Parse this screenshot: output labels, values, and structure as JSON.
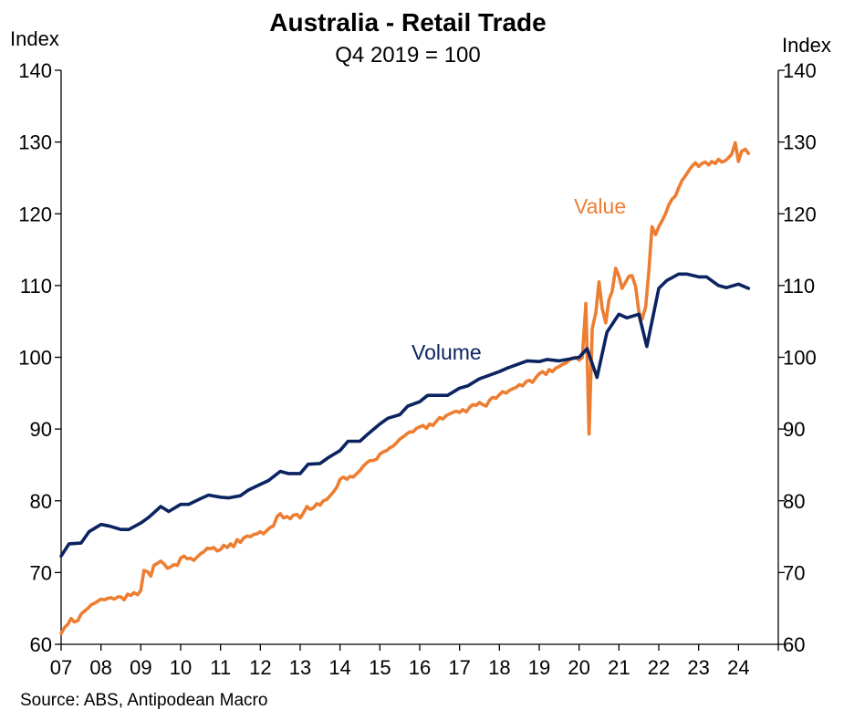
{
  "chart_data": {
    "type": "line",
    "title": "Australia - Retail Trade",
    "subtitle": "Q4 2019 = 100",
    "left_axis_label": "Index",
    "right_axis_label": "Index",
    "ylim": [
      60,
      140
    ],
    "y_ticks": [
      60,
      70,
      80,
      90,
      100,
      110,
      120,
      130,
      140
    ],
    "y_tick_labels": [
      "60",
      "70",
      "80",
      "90",
      "100",
      "110",
      "120",
      "130",
      "140"
    ],
    "xlim": [
      2007,
      2025
    ],
    "x_ticks": [
      2007,
      2008,
      2009,
      2010,
      2011,
      2012,
      2013,
      2014,
      2015,
      2016,
      2017,
      2018,
      2019,
      2020,
      2021,
      2022,
      2023,
      2024
    ],
    "x_tick_labels": [
      "07",
      "08",
      "09",
      "10",
      "11",
      "12",
      "13",
      "14",
      "15",
      "16",
      "17",
      "18",
      "19",
      "20",
      "21",
      "22",
      "23",
      "24"
    ],
    "grid": false,
    "source": "Source: ABS, Antipodean Macro",
    "series": [
      {
        "name": "Volume",
        "color": "#0b2461",
        "frequency": "quarterly",
        "points": [
          [
            2007.0,
            72.3
          ],
          [
            2007.2,
            74.0
          ],
          [
            2007.5,
            74.1
          ],
          [
            2007.7,
            75.7
          ],
          [
            2008.0,
            76.7
          ],
          [
            2008.2,
            76.5
          ],
          [
            2008.5,
            76.0
          ],
          [
            2008.7,
            76.0
          ],
          [
            2009.0,
            76.9
          ],
          [
            2009.2,
            77.7
          ],
          [
            2009.5,
            79.2
          ],
          [
            2009.7,
            78.5
          ],
          [
            2010.0,
            79.5
          ],
          [
            2010.2,
            79.5
          ],
          [
            2010.5,
            80.3
          ],
          [
            2010.7,
            80.8
          ],
          [
            2011.0,
            80.5
          ],
          [
            2011.2,
            80.4
          ],
          [
            2011.5,
            80.7
          ],
          [
            2011.7,
            81.5
          ],
          [
            2012.0,
            82.3
          ],
          [
            2012.2,
            82.8
          ],
          [
            2012.5,
            84.1
          ],
          [
            2012.7,
            83.8
          ],
          [
            2013.0,
            83.8
          ],
          [
            2013.2,
            85.1
          ],
          [
            2013.5,
            85.2
          ],
          [
            2013.7,
            86.0
          ],
          [
            2014.0,
            87.0
          ],
          [
            2014.2,
            88.3
          ],
          [
            2014.5,
            88.3
          ],
          [
            2014.7,
            89.3
          ],
          [
            2015.0,
            90.7
          ],
          [
            2015.2,
            91.5
          ],
          [
            2015.5,
            92.0
          ],
          [
            2015.7,
            93.2
          ],
          [
            2016.0,
            93.8
          ],
          [
            2016.2,
            94.7
          ],
          [
            2016.5,
            94.7
          ],
          [
            2016.7,
            94.7
          ],
          [
            2017.0,
            95.7
          ],
          [
            2017.2,
            96.0
          ],
          [
            2017.5,
            97.0
          ],
          [
            2017.7,
            97.4
          ],
          [
            2018.0,
            98.0
          ],
          [
            2018.2,
            98.5
          ],
          [
            2018.5,
            99.1
          ],
          [
            2018.7,
            99.5
          ],
          [
            2019.0,
            99.4
          ],
          [
            2019.2,
            99.7
          ],
          [
            2019.5,
            99.5
          ],
          [
            2019.7,
            99.7
          ],
          [
            2020.0,
            100.0
          ],
          [
            2020.2,
            101.2
          ],
          [
            2020.45,
            97.2
          ],
          [
            2020.7,
            103.5
          ],
          [
            2021.0,
            106.0
          ],
          [
            2021.2,
            105.5
          ],
          [
            2021.5,
            106.0
          ],
          [
            2021.7,
            101.5
          ],
          [
            2022.0,
            109.6
          ],
          [
            2022.2,
            110.7
          ],
          [
            2022.5,
            111.6
          ],
          [
            2022.7,
            111.6
          ],
          [
            2023.0,
            111.2
          ],
          [
            2023.2,
            111.2
          ],
          [
            2023.5,
            110.0
          ],
          [
            2023.7,
            109.7
          ],
          [
            2024.0,
            110.2
          ],
          [
            2024.25,
            109.6
          ]
        ]
      },
      {
        "name": "Value",
        "color": "#ed7d31",
        "frequency": "monthly",
        "points": [
          [
            2007.0,
            61.5
          ],
          [
            2007.08,
            62.3
          ],
          [
            2007.17,
            62.8
          ],
          [
            2007.25,
            63.6
          ],
          [
            2007.33,
            63.1
          ],
          [
            2007.42,
            63.3
          ],
          [
            2007.5,
            64.2
          ],
          [
            2007.58,
            64.6
          ],
          [
            2007.67,
            65.0
          ],
          [
            2007.75,
            65.5
          ],
          [
            2007.83,
            65.7
          ],
          [
            2007.92,
            66.0
          ],
          [
            2008.0,
            66.3
          ],
          [
            2008.08,
            66.2
          ],
          [
            2008.17,
            66.4
          ],
          [
            2008.25,
            66.5
          ],
          [
            2008.33,
            66.3
          ],
          [
            2008.42,
            66.6
          ],
          [
            2008.5,
            66.6
          ],
          [
            2008.58,
            66.2
          ],
          [
            2008.67,
            67.0
          ],
          [
            2008.75,
            66.8
          ],
          [
            2008.83,
            67.2
          ],
          [
            2008.92,
            66.9
          ],
          [
            2009.0,
            67.5
          ],
          [
            2009.08,
            70.3
          ],
          [
            2009.17,
            70.1
          ],
          [
            2009.25,
            69.5
          ],
          [
            2009.33,
            71.0
          ],
          [
            2009.42,
            71.3
          ],
          [
            2009.5,
            71.6
          ],
          [
            2009.58,
            71.2
          ],
          [
            2009.67,
            70.6
          ],
          [
            2009.75,
            70.8
          ],
          [
            2009.83,
            71.1
          ],
          [
            2009.92,
            71.0
          ],
          [
            2010.0,
            72.0
          ],
          [
            2010.08,
            72.3
          ],
          [
            2010.17,
            71.9
          ],
          [
            2010.25,
            72.0
          ],
          [
            2010.33,
            71.7
          ],
          [
            2010.42,
            72.2
          ],
          [
            2010.5,
            72.6
          ],
          [
            2010.58,
            72.9
          ],
          [
            2010.67,
            73.4
          ],
          [
            2010.75,
            73.3
          ],
          [
            2010.83,
            73.5
          ],
          [
            2010.92,
            73.0
          ],
          [
            2011.0,
            73.2
          ],
          [
            2011.08,
            73.8
          ],
          [
            2011.17,
            73.5
          ],
          [
            2011.25,
            74.0
          ],
          [
            2011.33,
            73.6
          ],
          [
            2011.42,
            74.6
          ],
          [
            2011.5,
            74.2
          ],
          [
            2011.58,
            74.8
          ],
          [
            2011.67,
            75.1
          ],
          [
            2011.75,
            75.0
          ],
          [
            2011.83,
            75.3
          ],
          [
            2011.92,
            75.4
          ],
          [
            2012.0,
            75.7
          ],
          [
            2012.08,
            75.4
          ],
          [
            2012.17,
            75.9
          ],
          [
            2012.25,
            76.3
          ],
          [
            2012.33,
            76.5
          ],
          [
            2012.42,
            77.8
          ],
          [
            2012.5,
            78.2
          ],
          [
            2012.58,
            77.6
          ],
          [
            2012.67,
            77.8
          ],
          [
            2012.75,
            77.5
          ],
          [
            2012.83,
            78.0
          ],
          [
            2012.92,
            78.1
          ],
          [
            2013.0,
            77.6
          ],
          [
            2013.08,
            78.3
          ],
          [
            2013.17,
            79.2
          ],
          [
            2013.25,
            78.8
          ],
          [
            2013.33,
            79.0
          ],
          [
            2013.42,
            79.6
          ],
          [
            2013.5,
            79.4
          ],
          [
            2013.58,
            80.0
          ],
          [
            2013.67,
            80.2
          ],
          [
            2013.75,
            80.7
          ],
          [
            2013.83,
            81.2
          ],
          [
            2013.92,
            81.9
          ],
          [
            2014.0,
            83.0
          ],
          [
            2014.08,
            83.3
          ],
          [
            2014.17,
            83.0
          ],
          [
            2014.25,
            83.4
          ],
          [
            2014.33,
            83.3
          ],
          [
            2014.42,
            83.8
          ],
          [
            2014.5,
            84.2
          ],
          [
            2014.58,
            84.8
          ],
          [
            2014.67,
            85.3
          ],
          [
            2014.75,
            85.6
          ],
          [
            2014.83,
            85.6
          ],
          [
            2014.92,
            85.8
          ],
          [
            2015.0,
            86.5
          ],
          [
            2015.08,
            86.8
          ],
          [
            2015.17,
            87.0
          ],
          [
            2015.25,
            87.4
          ],
          [
            2015.33,
            87.6
          ],
          [
            2015.42,
            88.1
          ],
          [
            2015.5,
            88.6
          ],
          [
            2015.58,
            88.9
          ],
          [
            2015.67,
            89.3
          ],
          [
            2015.75,
            89.6
          ],
          [
            2015.83,
            89.6
          ],
          [
            2015.92,
            90.1
          ],
          [
            2016.0,
            90.3
          ],
          [
            2016.08,
            90.5
          ],
          [
            2016.17,
            90.1
          ],
          [
            2016.25,
            90.7
          ],
          [
            2016.33,
            90.5
          ],
          [
            2016.42,
            91.1
          ],
          [
            2016.5,
            91.6
          ],
          [
            2016.58,
            91.4
          ],
          [
            2016.67,
            91.9
          ],
          [
            2016.75,
            92.1
          ],
          [
            2016.83,
            92.3
          ],
          [
            2016.92,
            92.5
          ],
          [
            2017.0,
            92.3
          ],
          [
            2017.08,
            92.7
          ],
          [
            2017.17,
            92.4
          ],
          [
            2017.25,
            93.0
          ],
          [
            2017.33,
            93.4
          ],
          [
            2017.42,
            93.3
          ],
          [
            2017.5,
            93.7
          ],
          [
            2017.58,
            93.4
          ],
          [
            2017.67,
            93.2
          ],
          [
            2017.75,
            94.0
          ],
          [
            2017.83,
            94.4
          ],
          [
            2017.92,
            94.3
          ],
          [
            2018.0,
            94.8
          ],
          [
            2018.08,
            95.2
          ],
          [
            2018.17,
            95.0
          ],
          [
            2018.25,
            95.4
          ],
          [
            2018.33,
            95.6
          ],
          [
            2018.42,
            95.8
          ],
          [
            2018.5,
            96.2
          ],
          [
            2018.58,
            96.0
          ],
          [
            2018.67,
            96.6
          ],
          [
            2018.75,
            96.8
          ],
          [
            2018.83,
            96.5
          ],
          [
            2018.92,
            97.2
          ],
          [
            2019.0,
            97.7
          ],
          [
            2019.08,
            98.0
          ],
          [
            2019.17,
            97.6
          ],
          [
            2019.25,
            98.3
          ],
          [
            2019.33,
            98.0
          ],
          [
            2019.42,
            98.5
          ],
          [
            2019.5,
            98.7
          ],
          [
            2019.58,
            99.0
          ],
          [
            2019.67,
            99.2
          ],
          [
            2019.75,
            99.6
          ],
          [
            2019.83,
            99.9
          ],
          [
            2019.92,
            100.0
          ],
          [
            2020.0,
            99.6
          ],
          [
            2020.08,
            100.0
          ],
          [
            2020.17,
            107.5
          ],
          [
            2020.25,
            89.3
          ],
          [
            2020.33,
            104.0
          ],
          [
            2020.42,
            106.2
          ],
          [
            2020.5,
            110.5
          ],
          [
            2020.58,
            106.8
          ],
          [
            2020.67,
            104.8
          ],
          [
            2020.75,
            108.0
          ],
          [
            2020.83,
            109.2
          ],
          [
            2020.92,
            112.4
          ],
          [
            2021.0,
            111.3
          ],
          [
            2021.08,
            109.6
          ],
          [
            2021.17,
            110.5
          ],
          [
            2021.25,
            111.3
          ],
          [
            2021.33,
            111.4
          ],
          [
            2021.42,
            109.8
          ],
          [
            2021.5,
            106.3
          ],
          [
            2021.58,
            105.3
          ],
          [
            2021.67,
            107.0
          ],
          [
            2021.75,
            112.0
          ],
          [
            2021.83,
            118.2
          ],
          [
            2021.92,
            117.1
          ],
          [
            2022.0,
            118.2
          ],
          [
            2022.08,
            119.0
          ],
          [
            2022.17,
            120.0
          ],
          [
            2022.25,
            121.2
          ],
          [
            2022.33,
            122.0
          ],
          [
            2022.42,
            122.5
          ],
          [
            2022.5,
            123.6
          ],
          [
            2022.58,
            124.6
          ],
          [
            2022.67,
            125.3
          ],
          [
            2022.75,
            126.0
          ],
          [
            2022.83,
            126.6
          ],
          [
            2022.92,
            127.1
          ],
          [
            2023.0,
            126.6
          ],
          [
            2023.08,
            127.0
          ],
          [
            2023.17,
            127.2
          ],
          [
            2023.25,
            126.8
          ],
          [
            2023.33,
            127.3
          ],
          [
            2023.42,
            127.0
          ],
          [
            2023.5,
            127.6
          ],
          [
            2023.58,
            127.2
          ],
          [
            2023.67,
            127.4
          ],
          [
            2023.75,
            127.8
          ],
          [
            2023.83,
            128.3
          ],
          [
            2023.92,
            129.9
          ],
          [
            2024.0,
            127.3
          ],
          [
            2024.08,
            128.7
          ],
          [
            2024.17,
            129.0
          ],
          [
            2024.25,
            128.4
          ]
        ]
      }
    ]
  }
}
